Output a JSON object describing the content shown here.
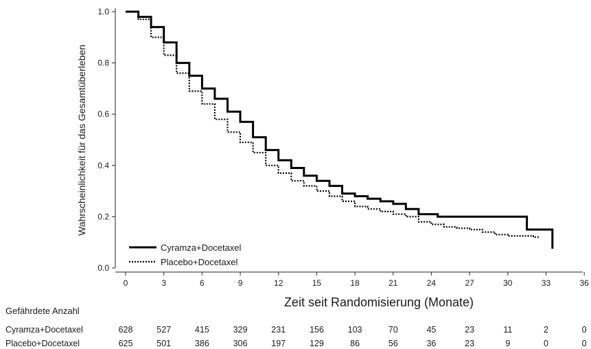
{
  "chart_data": {
    "type": "line",
    "xlabel": "Zeit seit Randomisierung (Monate)",
    "ylabel": "Wahrscheinlichkeit für das Gesamtüberleben",
    "xlim": [
      0,
      36
    ],
    "ylim": [
      0,
      1.0
    ],
    "x_ticks": [
      0,
      3,
      6,
      9,
      12,
      15,
      18,
      21,
      24,
      27,
      30,
      33,
      36
    ],
    "y_ticks": [
      "0.0",
      "0.2",
      "0.4",
      "0.6",
      "0.8",
      "1.0"
    ],
    "grid": false,
    "legend_position": "bottom-left",
    "series": [
      {
        "name": "Cyramza+Docetaxel",
        "style": "solid",
        "color": "#000000",
        "points": [
          [
            0,
            1.0
          ],
          [
            1,
            0.98
          ],
          [
            2,
            0.94
          ],
          [
            3,
            0.88
          ],
          [
            4,
            0.8
          ],
          [
            5,
            0.75
          ],
          [
            6,
            0.7
          ],
          [
            7,
            0.66
          ],
          [
            8,
            0.61
          ],
          [
            9,
            0.57
          ],
          [
            10,
            0.51
          ],
          [
            11,
            0.46
          ],
          [
            12,
            0.42
          ],
          [
            13,
            0.39
          ],
          [
            14,
            0.36
          ],
          [
            15,
            0.34
          ],
          [
            16,
            0.32
          ],
          [
            17,
            0.29
          ],
          [
            18,
            0.28
          ],
          [
            19,
            0.27
          ],
          [
            20,
            0.26
          ],
          [
            21,
            0.25
          ],
          [
            22,
            0.23
          ],
          [
            23,
            0.21
          ],
          [
            24,
            0.21
          ],
          [
            24.5,
            0.2
          ],
          [
            27,
            0.2
          ],
          [
            30,
            0.2
          ],
          [
            31.5,
            0.2
          ],
          [
            31.5,
            0.15
          ],
          [
            33.5,
            0.15
          ],
          [
            33.5,
            0.075
          ]
        ]
      },
      {
        "name": "Placebo+Docetaxel",
        "style": "dotted",
        "color": "#000000",
        "points": [
          [
            0,
            1.0
          ],
          [
            1,
            0.97
          ],
          [
            2,
            0.9
          ],
          [
            3,
            0.83
          ],
          [
            4,
            0.76
          ],
          [
            5,
            0.69
          ],
          [
            6,
            0.64
          ],
          [
            7,
            0.58
          ],
          [
            8,
            0.53
          ],
          [
            9,
            0.49
          ],
          [
            10,
            0.45
          ],
          [
            11,
            0.4
          ],
          [
            12,
            0.37
          ],
          [
            13,
            0.34
          ],
          [
            14,
            0.32
          ],
          [
            15,
            0.3
          ],
          [
            16,
            0.28
          ],
          [
            17,
            0.26
          ],
          [
            18,
            0.24
          ],
          [
            19,
            0.23
          ],
          [
            20,
            0.22
          ],
          [
            21,
            0.21
          ],
          [
            22,
            0.2
          ],
          [
            23,
            0.18
          ],
          [
            24,
            0.17
          ],
          [
            25,
            0.16
          ],
          [
            26,
            0.155
          ],
          [
            27,
            0.15
          ],
          [
            28,
            0.14
          ],
          [
            29,
            0.13
          ],
          [
            30,
            0.125
          ],
          [
            31,
            0.125
          ],
          [
            32,
            0.12
          ],
          [
            32.5,
            0.12
          ]
        ]
      }
    ],
    "risk_table": {
      "title": "Gefährdete Anzahl",
      "times": [
        0,
        3,
        6,
        9,
        12,
        15,
        18,
        21,
        24,
        27,
        30,
        33,
        36
      ],
      "rows": [
        {
          "label": "Cyramza+Docetaxel",
          "values": [
            "628",
            "527",
            "415",
            "329",
            "231",
            "156",
            "103",
            "70",
            "45",
            "23",
            "11",
            "2",
            "0"
          ]
        },
        {
          "label": "Placebo+Docetaxel",
          "values": [
            "625",
            "501",
            "386",
            "306",
            "197",
            "129",
            "86",
            "56",
            "36",
            "23",
            "9",
            "0",
            "0"
          ]
        }
      ]
    }
  }
}
